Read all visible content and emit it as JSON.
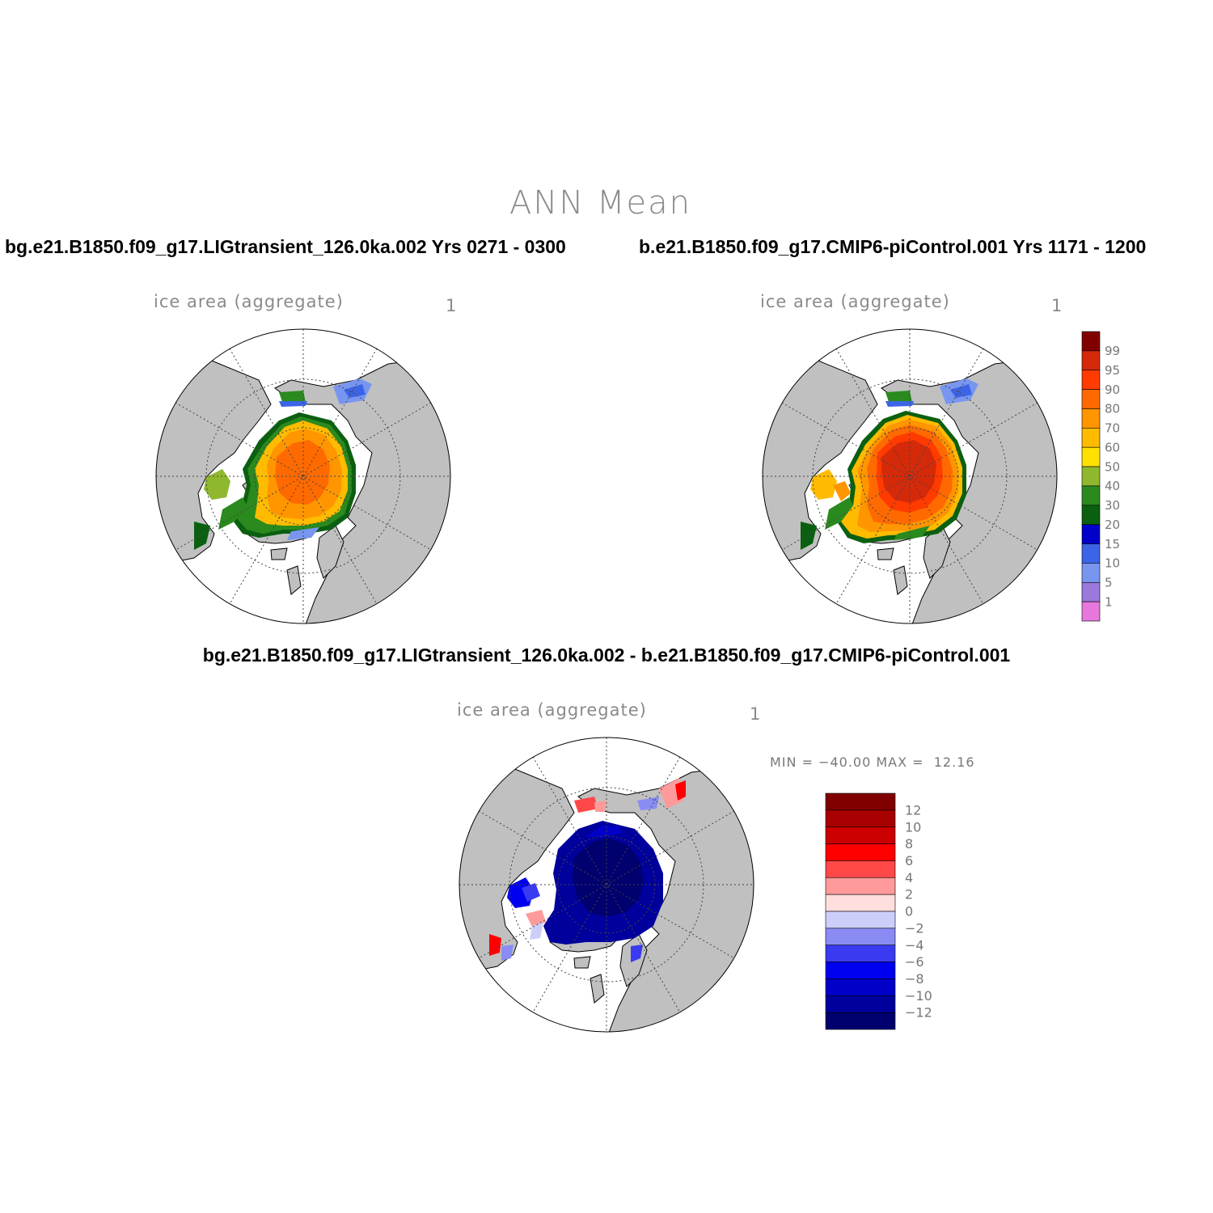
{
  "page_title": "ANN Mean",
  "left_case_title": "bg.e21.B1850.f09_g17.LIGtransient_126.0ka.002  Yrs 0271 - 0300",
  "right_case_title": "b.e21.B1850.f09_g17.CMIP6-piControl.001  Yrs 1171 - 1200",
  "diff_title": "bg.e21.B1850.f09_g17.LIGtransient_126.0ka.002 - b.e21.B1850.f09_g17.CMIP6-piControl.001",
  "panels": [
    {
      "label": "ice area  (aggregate)",
      "units": "1"
    },
    {
      "label": "ice area  (aggregate)",
      "units": "1"
    },
    {
      "label": "ice area  (aggregate)",
      "units": "1"
    }
  ],
  "diff_minmax": "MIN = −40.00 MAX =  12.16",
  "ice_colorbar": {
    "labels": [
      "99",
      "95",
      "90",
      "80",
      "70",
      "60",
      "50",
      "40",
      "30",
      "20",
      "15",
      "10",
      "5",
      "1"
    ],
    "colors": [
      "#800000",
      "#d42a0a",
      "#ff3b00",
      "#ff6a00",
      "#ff9600",
      "#ffbb00",
      "#ffe000",
      "#8fb82e",
      "#2a8a1e",
      "#0a6010",
      "#0000c8",
      "#3c64e6",
      "#7896f0",
      "#9a78dc",
      "#e678dc"
    ]
  },
  "diff_colorbar": {
    "labels": [
      "12",
      "10",
      "8",
      "6",
      "4",
      "2",
      "0",
      "−2",
      "−4",
      "−6",
      "−8",
      "−10",
      "−12"
    ],
    "colors": [
      "#800000",
      "#a80000",
      "#cc0000",
      "#ff0000",
      "#ff4848",
      "#ff9a9a",
      "#ffdede",
      "#cccefa",
      "#8a8cf4",
      "#3a3af0",
      "#0000f0",
      "#0000c8",
      "#00009c",
      "#00006e"
    ]
  },
  "colors": {
    "land": "#c0c0c0",
    "ocean": "#ffffff",
    "grid": "#444444"
  }
}
